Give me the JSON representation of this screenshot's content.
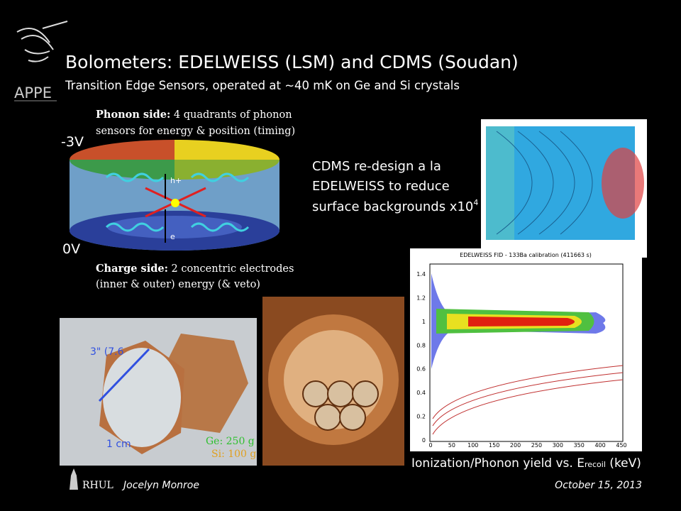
{
  "header": {
    "logo": "APPE",
    "title": "Bolometers: EDELWEISS (LSM) and CDMS (Soudan)",
    "subtitle": "Transition Edge Sensors, operated at ~40 mK on Ge and Si crystals"
  },
  "detector": {
    "phonon_head": "Phonon side:",
    "phonon_lines": [
      " 4 quadrants of phonon",
      "sensors for energy & position (timing)"
    ],
    "top_voltage": "-3V",
    "bottom_voltage": "0V",
    "hole": "h+",
    "electron": "e",
    "charge_head": "Charge side:",
    "charge_lines": [
      " 2 concentric electrodes",
      "(inner & outer) energy (& veto)"
    ]
  },
  "cdms_note": {
    "lines": [
      "CDMS re-design a la",
      "EDELWEISS to reduce",
      "surface backgrounds x10"
    ],
    "exponent": "4"
  },
  "crystal_photo": {
    "diameter": "3\" (7.6",
    "thickness": "1 cm",
    "ge_mass": "Ge: 250 g",
    "si_mass": "Si: 100 g"
  },
  "plot": {
    "title": "EDELWEISS FID - 133Ba calibration  (411663 s)",
    "yticks": [
      0,
      0.2,
      0.4,
      0.6,
      0.8,
      1,
      1.2,
      1.4
    ],
    "xticks": [
      0,
      50,
      100,
      150,
      200,
      250,
      300,
      350,
      400,
      450
    ],
    "caption": "Ionization/Phonon yield vs. E",
    "caption_sub": "recoil",
    "caption_end": " (keV)"
  },
  "footer": {
    "institution": "RHUL",
    "author": "Jocelyn Monroe",
    "date": "October 15, 2013"
  }
}
